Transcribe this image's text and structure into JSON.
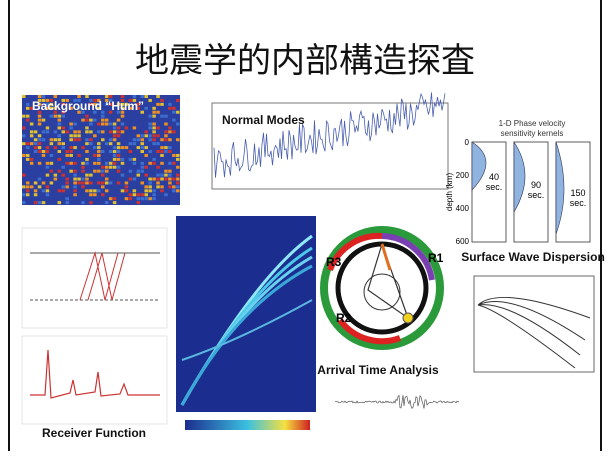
{
  "title": "地震学的内部構造探査",
  "panels": {
    "hum": "Background “Hum”",
    "normal_modes": "Normal Modes",
    "dispersion": "Surface Wave Dispersion",
    "receiver": "Receiver Function",
    "arrival": "Arrival Time Analysis"
  },
  "kernels": {
    "heading": [
      "1-D Phase velocity",
      "sensitivity kernels"
    ],
    "periods": [
      [
        "40",
        "sec."
      ],
      [
        "90",
        "sec."
      ],
      [
        "150",
        "sec."
      ]
    ],
    "axis": "depth (km)",
    "ticks": [
      "0",
      "200",
      "400",
      "600"
    ]
  },
  "ring": [
    "R1",
    "R2",
    "R3"
  ]
}
